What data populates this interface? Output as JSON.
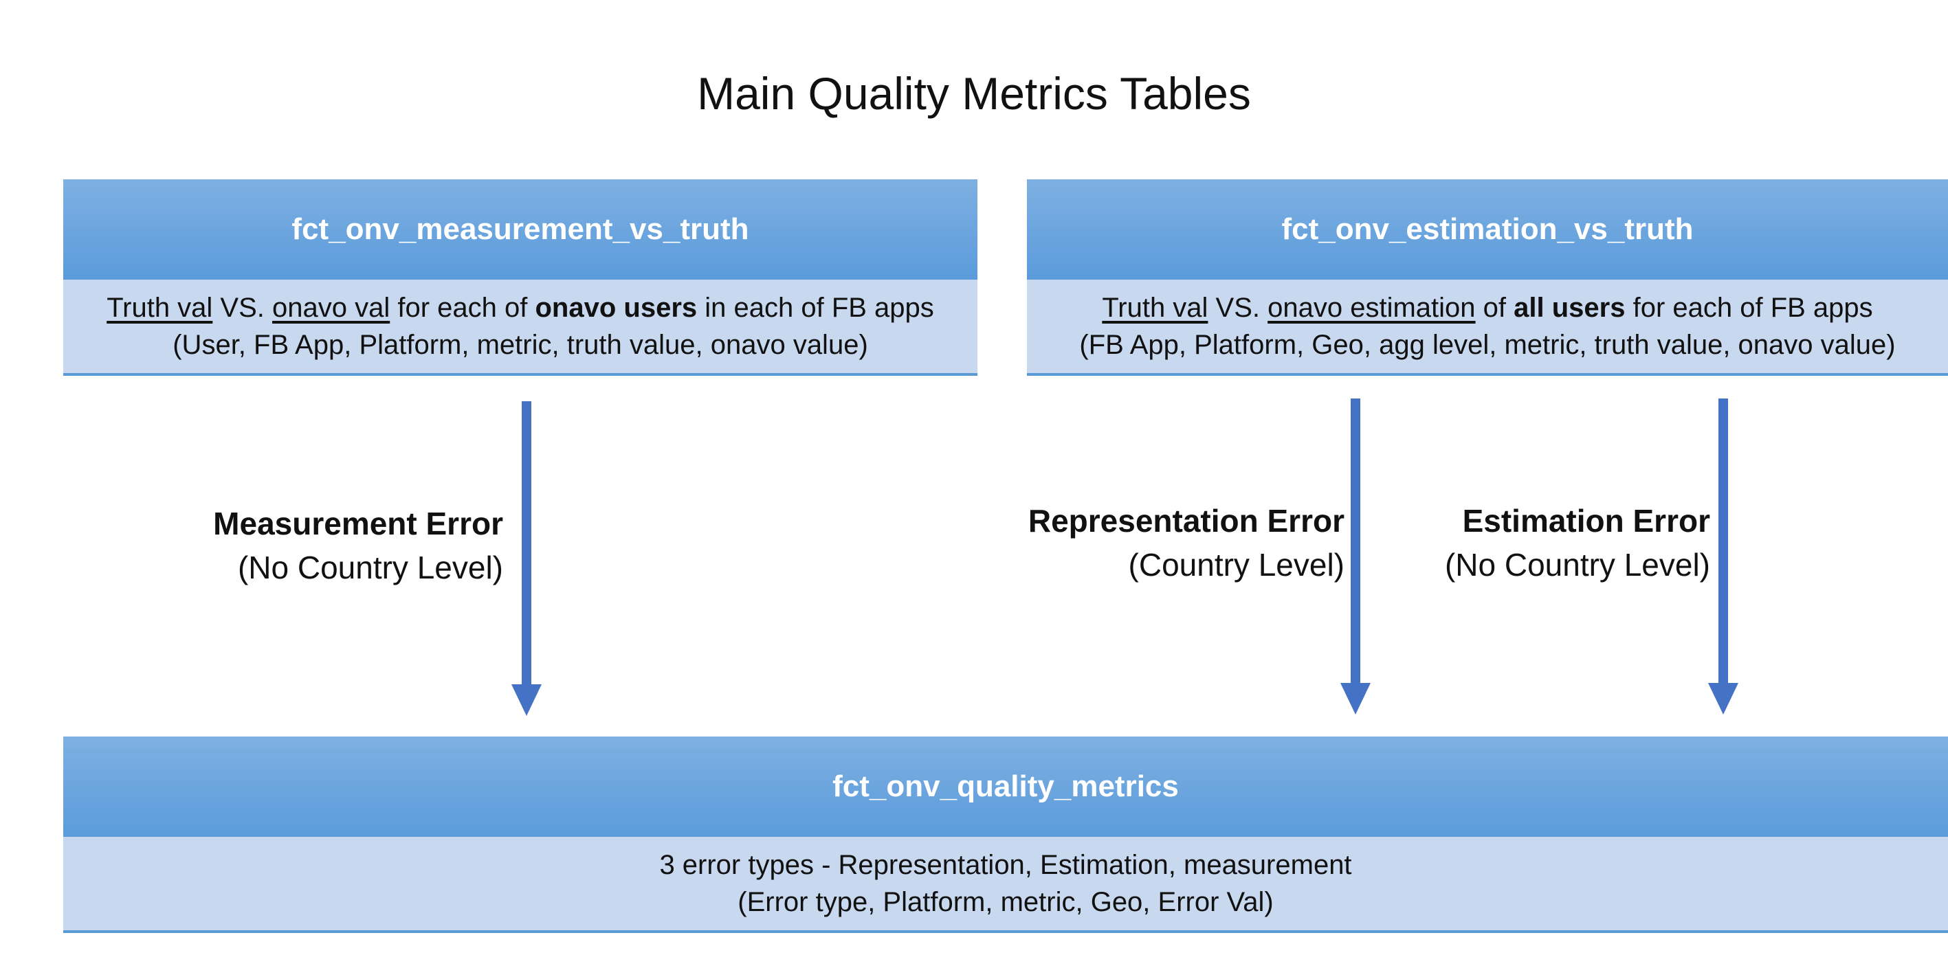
{
  "title": "Main Quality Metrics Tables",
  "colors": {
    "header_top": "#7eb0e2",
    "header_bottom": "#5b9bdb",
    "body_fill": "#c8d8ee",
    "arrow": "#4472c4"
  },
  "tables": {
    "measurement": {
      "name": "fct_onv_measurement_vs_truth",
      "line1": {
        "u1": "Truth val",
        "t1": " VS. ",
        "u2": "onavo val",
        "t2": " for each of ",
        "b1": "onavo users",
        "t3": " in each of FB apps"
      },
      "line2": "(User, FB App, Platform, metric, truth value, onavo value)"
    },
    "estimation": {
      "name": "fct_onv_estimation_vs_truth",
      "line1": {
        "u1": "Truth val",
        "t1": " VS. ",
        "u2": "onavo estimation",
        "t2": " of ",
        "b1": "all users",
        "t3": " for each of FB apps"
      },
      "line2": "(FB App, Platform, Geo, agg level, metric, truth value, onavo value)"
    },
    "quality": {
      "name": "fct_onv_quality_metrics",
      "line1": "3 error types - Representation, Estimation, measurement",
      "line2": "(Error type, Platform, metric, Geo, Error Val)"
    }
  },
  "errors": {
    "measurement": {
      "name": "Measurement Error",
      "level": "(No Country Level)"
    },
    "representation": {
      "name": "Representation Error",
      "level": "(Country Level)"
    },
    "estimation": {
      "name": "Estimation Error",
      "level": "(No Country Level)"
    }
  }
}
